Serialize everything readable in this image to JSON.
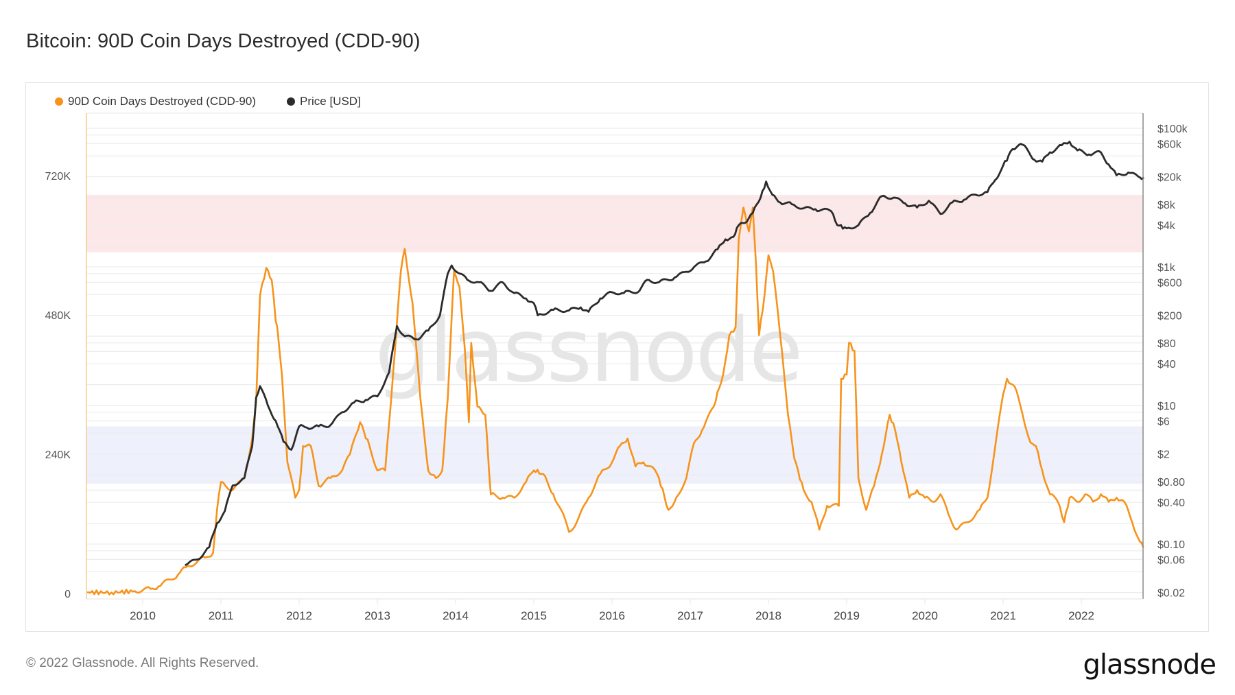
{
  "title": "Bitcoin: 90D Coin Days Destroyed (CDD-90)",
  "footer": "© 2022 Glassnode. All Rights Reserved.",
  "brand": "glassnode",
  "watermark": "glassnode",
  "colors": {
    "cdd": "#f7931a",
    "price": "#2b2b2b",
    "upper_band": "#fce8e9",
    "lower_band": "#eef0fb",
    "grid": "#ececec",
    "watermark": "#e6e6e6"
  },
  "legend": [
    {
      "label": "90D Coin Days Destroyed (CDD-90)",
      "color": "#f7931a"
    },
    {
      "label": "Price [USD]",
      "color": "#2b2b2b"
    }
  ],
  "chart_data": {
    "type": "line",
    "title": "Bitcoin: 90D Coin Days Destroyed (CDD-90)",
    "xlabel": "",
    "x_ticks": [
      "2010",
      "2011",
      "2012",
      "2013",
      "2014",
      "2015",
      "2016",
      "2017",
      "2018",
      "2019",
      "2020",
      "2021",
      "2022"
    ],
    "xlim": [
      2009.28,
      2022.79
    ],
    "legend_position": "top-left",
    "grid": true,
    "y_left": {
      "label": "90D Coin Days Destroyed (CDD-90)",
      "ticks": [
        {
          "value": 0,
          "label": "0"
        },
        {
          "value": 240000,
          "label": "240K"
        },
        {
          "value": 480000,
          "label": "480K"
        },
        {
          "value": 720000,
          "label": "720K"
        }
      ],
      "range": [
        0,
        860000
      ]
    },
    "y_right": {
      "label": "Price [USD]",
      "scale": "log",
      "ticks": [
        {
          "value": 100000,
          "label": "$100k"
        },
        {
          "value": 60000,
          "label": "$60k"
        },
        {
          "value": 20000,
          "label": "$20k"
        },
        {
          "value": 8000,
          "label": "$8k"
        },
        {
          "value": 4000,
          "label": "$4k"
        },
        {
          "value": 1000,
          "label": "$1k"
        },
        {
          "value": 600,
          "label": "$600"
        },
        {
          "value": 200,
          "label": "$200"
        },
        {
          "value": 80,
          "label": "$80"
        },
        {
          "value": 40,
          "label": "$40"
        },
        {
          "value": 10,
          "label": "$10"
        },
        {
          "value": 6,
          "label": "$6"
        },
        {
          "value": 2,
          "label": "$2"
        },
        {
          "value": 0.8,
          "label": "$0.80"
        },
        {
          "value": 0.4,
          "label": "$0.40"
        },
        {
          "value": 0.1,
          "label": "$0.10"
        },
        {
          "value": 0.06,
          "label": "$0.06"
        },
        {
          "value": 0.02,
          "label": "$0.02"
        }
      ],
      "range": [
        0.018,
        180000
      ]
    },
    "bands": [
      {
        "name": "upper-band",
        "axis": "left",
        "from": 588000,
        "to": 687000,
        "color": "#fce8e9"
      },
      {
        "name": "lower-band",
        "axis": "left",
        "from": 189000,
        "to": 288000,
        "color": "#eef0fb"
      }
    ],
    "series": [
      {
        "name": "90D Coin Days Destroyed (CDD-90)",
        "axis": "left",
        "color": "#f7931a",
        "x": [
          2009.3,
          2009.6,
          2009.9,
          2010.1,
          2010.2,
          2010.35,
          2010.45,
          2010.55,
          2010.7,
          2010.8,
          2010.9,
          2010.95,
          2011.0,
          2011.15,
          2011.3,
          2011.4,
          2011.45,
          2011.5,
          2011.58,
          2011.65,
          2011.7,
          2011.72,
          2011.78,
          2011.85,
          2011.95,
          2012.0,
          2012.05,
          2012.15,
          2012.25,
          2012.4,
          2012.55,
          2012.65,
          2012.78,
          2012.9,
          2013.0,
          2013.1,
          2013.2,
          2013.3,
          2013.35,
          2013.45,
          2013.55,
          2013.65,
          2013.75,
          2013.83,
          2013.9,
          2013.98,
          2014.05,
          2014.12,
          2014.17,
          2014.2,
          2014.28,
          2014.38,
          2014.45,
          2014.6,
          2014.75,
          2014.9,
          2015.0,
          2015.12,
          2015.25,
          2015.35,
          2015.45,
          2015.55,
          2015.7,
          2015.85,
          2016.0,
          2016.1,
          2016.2,
          2016.3,
          2016.4,
          2016.5,
          2016.6,
          2016.72,
          2016.8,
          2016.95,
          2017.05,
          2017.15,
          2017.3,
          2017.42,
          2017.5,
          2017.58,
          2017.62,
          2017.68,
          2017.75,
          2017.8,
          2017.84,
          2017.88,
          2017.95,
          2018.0,
          2018.06,
          2018.15,
          2018.25,
          2018.33,
          2018.45,
          2018.55,
          2018.65,
          2018.75,
          2018.9,
          2018.93,
          2019.0,
          2019.03,
          2019.1,
          2019.15,
          2019.25,
          2019.35,
          2019.45,
          2019.55,
          2019.62,
          2019.7,
          2019.8,
          2019.9,
          2020.0,
          2020.1,
          2020.2,
          2020.3,
          2020.4,
          2020.55,
          2020.7,
          2020.8,
          2020.9,
          2021.0,
          2021.05,
          2021.15,
          2021.25,
          2021.35,
          2021.42,
          2021.5,
          2021.6,
          2021.7,
          2021.78,
          2021.85,
          2021.95,
          2022.05,
          2022.15,
          2022.25,
          2022.35,
          2022.45,
          2022.55,
          2022.65,
          2022.75,
          2022.79
        ],
        "y": [
          2000,
          1500,
          4000,
          8000,
          12000,
          24000,
          32000,
          45000,
          55000,
          62000,
          70000,
          144000,
          192000,
          178000,
          199000,
          267000,
          330000,
          514000,
          561000,
          540000,
          470000,
          459000,
          377000,
          226000,
          165000,
          178000,
          254000,
          254000,
          185000,
          199000,
          212000,
          240000,
          295000,
          254000,
          212000,
          212000,
          377000,
          555000,
          594000,
          500000,
          336000,
          212000,
          199000,
          212000,
          336000,
          555000,
          528000,
          418000,
          295000,
          432000,
          322000,
          308000,
          171000,
          165000,
          165000,
          192000,
          212000,
          206000,
          171000,
          144000,
          106000,
          123000,
          165000,
          206000,
          226000,
          254000,
          267000,
          219000,
          226000,
          219000,
          199000,
          144000,
          158000,
          199000,
          260000,
          281000,
          322000,
          377000,
          445000,
          459000,
          610000,
          665000,
          624000,
          665000,
          569000,
          445000,
          514000,
          583000,
          555000,
          445000,
          308000,
          233000,
          178000,
          158000,
          110000,
          151000,
          151000,
          370000,
          377000,
          432000,
          418000,
          199000,
          144000,
          185000,
          240000,
          308000,
          281000,
          226000,
          165000,
          178000,
          165000,
          158000,
          171000,
          137000,
          110000,
          123000,
          144000,
          165000,
          254000,
          343000,
          370000,
          356000,
          308000,
          260000,
          254000,
          212000,
          171000,
          158000,
          123000,
          165000,
          158000,
          171000,
          158000,
          171000,
          158000,
          165000,
          158000,
          123000,
          89000,
          80000
        ]
      },
      {
        "name": "Price [USD]",
        "axis": "right",
        "color": "#2b2b2b",
        "x": [
          2010.55,
          2010.7,
          2010.85,
          2010.95,
          2011.05,
          2011.15,
          2011.3,
          2011.4,
          2011.45,
          2011.5,
          2011.6,
          2011.7,
          2011.8,
          2011.9,
          2012.0,
          2012.1,
          2012.25,
          2012.4,
          2012.55,
          2012.7,
          2012.85,
          2013.0,
          2013.15,
          2013.25,
          2013.35,
          2013.5,
          2013.65,
          2013.8,
          2013.9,
          2013.95,
          2014.05,
          2014.15,
          2014.3,
          2014.45,
          2014.6,
          2014.75,
          2014.9,
          2015.0,
          2015.05,
          2015.25,
          2015.45,
          2015.6,
          2015.7,
          2015.85,
          2016.0,
          2016.15,
          2016.35,
          2016.45,
          2016.6,
          2016.8,
          2016.95,
          2017.05,
          2017.2,
          2017.35,
          2017.45,
          2017.55,
          2017.62,
          2017.7,
          2017.8,
          2017.9,
          2017.97,
          2018.05,
          2018.15,
          2018.3,
          2018.45,
          2018.6,
          2018.8,
          2018.88,
          2019.0,
          2019.15,
          2019.3,
          2019.45,
          2019.6,
          2019.75,
          2019.9,
          2020.05,
          2020.2,
          2020.35,
          2020.5,
          2020.65,
          2020.8,
          2020.9,
          2021.0,
          2021.12,
          2021.25,
          2021.4,
          2021.5,
          2021.6,
          2021.75,
          2021.85,
          2021.95,
          2022.1,
          2022.25,
          2022.35,
          2022.45,
          2022.6,
          2022.75,
          2022.79
        ],
        "y": [
          0.05,
          0.06,
          0.09,
          0.2,
          0.3,
          0.7,
          0.9,
          2.6,
          13,
          19,
          10,
          6,
          3,
          2.3,
          5,
          4.8,
          5,
          5.2,
          8,
          11,
          12,
          13.5,
          30,
          140,
          100,
          90,
          120,
          200,
          800,
          1050,
          800,
          650,
          600,
          450,
          600,
          420,
          350,
          300,
          200,
          240,
          235,
          260,
          225,
          350,
          430,
          420,
          450,
          650,
          600,
          700,
          850,
          1000,
          1200,
          1800,
          2500,
          2700,
          4000,
          4300,
          6000,
          10000,
          17000,
          11000,
          8500,
          8000,
          7000,
          6800,
          6400,
          4000,
          3600,
          4000,
          6000,
          10500,
          10000,
          8200,
          7200,
          9000,
          5800,
          8500,
          9300,
          11000,
          12000,
          18000,
          29000,
          50000,
          58000,
          35000,
          33000,
          45000,
          57000,
          64000,
          48000,
          42000,
          45000,
          30000,
          21000,
          23000,
          19500,
          19200
        ]
      }
    ]
  }
}
